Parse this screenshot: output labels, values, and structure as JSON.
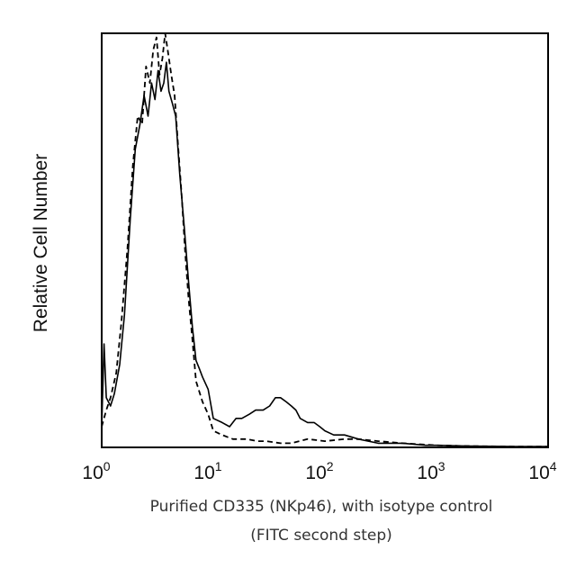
{
  "chart_data": {
    "type": "line",
    "xscale": "log",
    "xlim": [
      1,
      10000
    ],
    "ylim": [
      0,
      100
    ],
    "grid": false,
    "legend": "none",
    "xlabel_lines": [
      "Purified CD335 (NKp46), with isotype control",
      "(FITC second step)"
    ],
    "ylabel": "Relative Cell Number",
    "x_ticks": [
      {
        "base": "10",
        "exp": "0",
        "value": 1
      },
      {
        "base": "10",
        "exp": "1",
        "value": 10
      },
      {
        "base": "10",
        "exp": "2",
        "value": 100
      },
      {
        "base": "10",
        "exp": "3",
        "value": 1000
      },
      {
        "base": "10",
        "exp": "4",
        "value": 10000
      }
    ],
    "series": [
      {
        "style": "solid",
        "color": "#000000",
        "x": [
          1.0,
          1.05,
          1.1,
          1.2,
          1.3,
          1.45,
          1.6,
          1.8,
          2.0,
          2.2,
          2.4,
          2.6,
          2.8,
          3.0,
          3.2,
          3.4,
          3.6,
          3.8,
          4.0,
          4.3,
          4.6,
          5.0,
          5.5,
          6.0,
          6.5,
          7.0,
          7.5,
          8.0,
          9.0,
          10.0,
          12.0,
          14.0,
          16.0,
          18.0,
          21.0,
          24.0,
          28.0,
          32.0,
          36.0,
          40.0,
          45.0,
          50.0,
          55.0,
          60.0,
          70.0,
          80.0,
          90.0,
          100.0,
          120.0,
          150.0,
          200.0,
          300.0,
          500.0,
          800.0,
          1000.0,
          2000.0,
          5000.0,
          10000.0
        ],
        "y": [
          5,
          25,
          12,
          10,
          13,
          20,
          32,
          55,
          72,
          78,
          85,
          80,
          88,
          84,
          91,
          86,
          88,
          93,
          86,
          83,
          80,
          66,
          53,
          40,
          29,
          21,
          19,
          17,
          14,
          7,
          6,
          5,
          7,
          7,
          8,
          9,
          9,
          10,
          12,
          12,
          11,
          10,
          9,
          7,
          6,
          6,
          5,
          4,
          3,
          3,
          2,
          1,
          1,
          0.5,
          0.5,
          0.3,
          0.2,
          0.2
        ]
      },
      {
        "style": "dashed",
        "color": "#000000",
        "x": [
          1.0,
          1.1,
          1.2,
          1.35,
          1.5,
          1.7,
          1.9,
          2.1,
          2.3,
          2.5,
          2.7,
          2.9,
          3.1,
          3.3,
          3.5,
          3.7,
          3.9,
          4.2,
          4.5,
          4.8,
          5.2,
          5.6,
          6.0,
          6.5,
          7.0,
          8.0,
          9.0,
          10.0,
          12.0,
          15.0,
          20.0,
          25.0,
          30.0,
          40.0,
          50.0,
          70.0,
          100.0,
          150.0,
          200.0,
          300.0,
          500.0,
          1000.0,
          2000.0,
          5000.0,
          10000.0
        ],
        "y": [
          5,
          9,
          12,
          18,
          30,
          48,
          68,
          80,
          78,
          92,
          88,
          96,
          99,
          90,
          94,
          100,
          96,
          90,
          85,
          74,
          61,
          47,
          36,
          26,
          16,
          11,
          8,
          4,
          3,
          2,
          2,
          1.5,
          1.5,
          1,
          1,
          2,
          1.5,
          2,
          2,
          1.5,
          1,
          0.5,
          0.3,
          0.2,
          0.2
        ]
      }
    ]
  }
}
